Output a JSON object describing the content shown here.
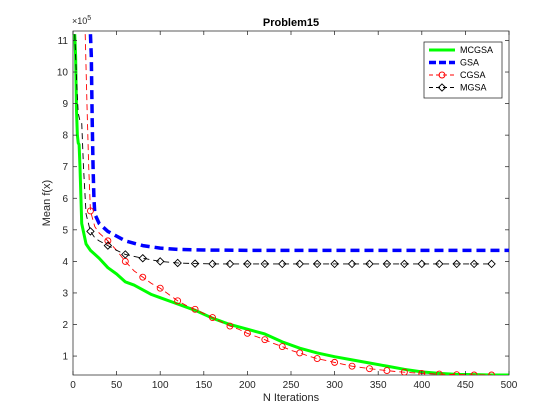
{
  "chart_data": {
    "type": "line",
    "title": "Problem15",
    "xlabel": "N Iterations",
    "ylabel": "Mean f(x)",
    "y_exponent_label": "×10",
    "y_exponent_power": "5",
    "xlim": [
      0,
      500
    ],
    "ylim": [
      0.4,
      11.3
    ],
    "x_ticks": [
      0,
      50,
      100,
      150,
      200,
      250,
      300,
      350,
      400,
      450,
      500
    ],
    "y_ticks": [
      1,
      2,
      3,
      4,
      5,
      6,
      7,
      8,
      9,
      10,
      11
    ],
    "grid": false,
    "legend_position": "top-right",
    "series": [
      {
        "name": "MCGSA",
        "color": "#00ff00",
        "style": "solid",
        "marker": "none",
        "x": [
          2,
          3,
          4,
          5,
          6,
          7,
          8,
          10,
          15,
          20,
          30,
          40,
          50,
          60,
          70,
          80,
          90,
          100,
          120,
          140,
          160,
          180,
          200,
          220,
          240,
          260,
          280,
          300,
          320,
          340,
          360,
          380,
          400,
          420,
          440,
          460,
          480,
          500
        ],
        "y": [
          11.2,
          10.5,
          8.8,
          8.0,
          7.75,
          7.7,
          7.0,
          5.2,
          4.55,
          4.35,
          4.1,
          3.8,
          3.6,
          3.35,
          3.25,
          3.1,
          2.95,
          2.85,
          2.65,
          2.45,
          2.2,
          2.0,
          1.85,
          1.7,
          1.45,
          1.25,
          1.1,
          0.98,
          0.88,
          0.78,
          0.68,
          0.58,
          0.5,
          0.45,
          0.42,
          0.41,
          0.4,
          0.4
        ]
      },
      {
        "name": "GSA",
        "color": "#0000ff",
        "style": "dashed",
        "marker": "none",
        "x": [
          20,
          21,
          22,
          23,
          24,
          25,
          30,
          40,
          50,
          60,
          80,
          100,
          120,
          150,
          200,
          250,
          300,
          350,
          400,
          450,
          500
        ],
        "y": [
          11.2,
          10.5,
          8.5,
          7.0,
          6.0,
          5.5,
          5.2,
          4.95,
          4.8,
          4.65,
          4.5,
          4.42,
          4.38,
          4.36,
          4.35,
          4.35,
          4.35,
          4.35,
          4.35,
          4.35,
          4.35
        ]
      },
      {
        "name": "CGSA",
        "color": "#ff0000",
        "style": "dashed",
        "marker": "circle",
        "x": [
          14,
          16,
          18,
          20,
          25,
          30,
          40,
          50,
          60,
          70,
          80,
          90,
          100,
          110,
          120,
          130,
          140,
          150,
          160,
          170,
          180,
          190,
          200,
          210,
          220,
          230,
          240,
          250,
          260,
          270,
          280,
          290,
          300,
          310,
          320,
          330,
          340,
          350,
          360,
          370,
          380,
          390,
          400,
          410,
          420,
          430,
          440,
          450,
          460,
          470,
          480
        ],
        "y": [
          11.2,
          9.0,
          7.0,
          5.6,
          5.1,
          4.9,
          4.65,
          4.35,
          4.0,
          3.7,
          3.5,
          3.3,
          3.15,
          2.95,
          2.75,
          2.6,
          2.48,
          2.35,
          2.22,
          2.08,
          1.95,
          1.85,
          1.72,
          1.62,
          1.52,
          1.4,
          1.3,
          1.18,
          1.1,
          1.0,
          0.92,
          0.86,
          0.8,
          0.74,
          0.68,
          0.64,
          0.6,
          0.57,
          0.54,
          0.51,
          0.49,
          0.47,
          0.45,
          0.44,
          0.43,
          0.42,
          0.41,
          0.41,
          0.4,
          0.4,
          0.4
        ]
      },
      {
        "name": "MGSA",
        "color": "#000000",
        "style": "dashed",
        "marker": "diamond",
        "x": [
          2,
          4,
          5,
          6,
          8,
          10,
          12,
          15,
          20,
          25,
          30,
          40,
          50,
          60,
          80,
          100,
          120,
          140,
          160,
          180,
          200,
          220,
          240,
          260,
          280,
          300,
          320,
          340,
          360,
          380,
          400,
          420,
          440,
          460,
          480
        ],
        "y": [
          11.2,
          9.8,
          9.2,
          8.7,
          8.45,
          8.4,
          7.0,
          5.5,
          4.95,
          4.75,
          4.65,
          4.5,
          4.35,
          4.22,
          4.1,
          4.0,
          3.95,
          3.93,
          3.92,
          3.92,
          3.92,
          3.92,
          3.92,
          3.92,
          3.92,
          3.92,
          3.92,
          3.92,
          3.92,
          3.92,
          3.92,
          3.92,
          3.92,
          3.92,
          3.92
        ]
      }
    ]
  }
}
